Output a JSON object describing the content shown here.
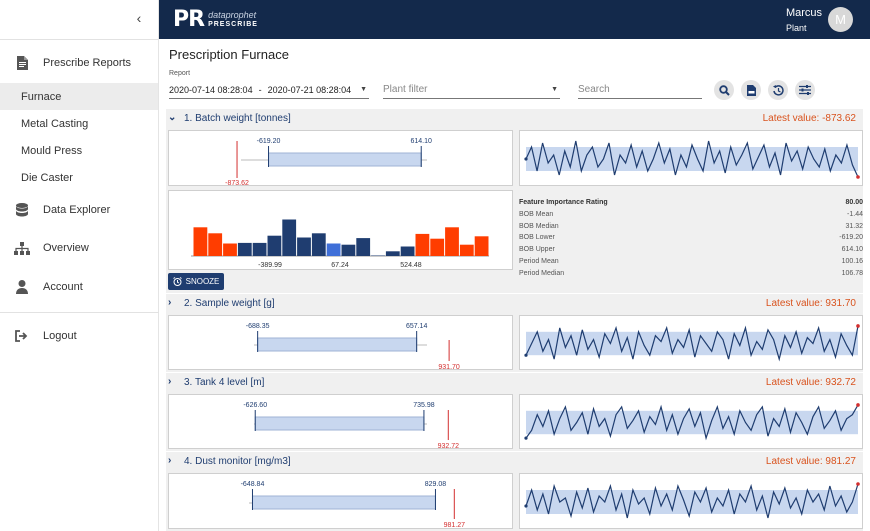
{
  "sidebar": {
    "items": [
      {
        "label": "Prescribe Reports",
        "icon": "document-icon"
      },
      {
        "label": "Data Explorer",
        "icon": "database-icon"
      },
      {
        "label": "Overview",
        "icon": "sitemap-icon"
      },
      {
        "label": "Account",
        "icon": "user-icon"
      },
      {
        "label": "Logout",
        "icon": "logout-icon"
      }
    ],
    "sub_items": [
      {
        "label": "Furnace",
        "active": true
      },
      {
        "label": "Metal Casting"
      },
      {
        "label": "Mould Press"
      },
      {
        "label": "Die Caster"
      }
    ]
  },
  "header": {
    "logo_mark": "PR",
    "logo_line1": "dataprophet",
    "logo_line2": "PRESCRIBE",
    "user_name": "Marcus",
    "user_role": "Plant",
    "avatar_letter": "M"
  },
  "toolbar": {
    "page_title": "Prescription Furnace",
    "report_label": "Report",
    "date_from": "2020-07-14  08:28:04",
    "date_sep": "-",
    "date_to": "2020-07-21  08:28:04",
    "plant_filter_placeholder": "Plant filter",
    "search_placeholder": "Search",
    "buttons": [
      "search-icon",
      "csv-icon",
      "history-icon",
      "sliders-icon"
    ]
  },
  "colors": {
    "navy": "#13294b",
    "accent": "#1f3d70",
    "orange": "#d9531e",
    "red_bar": "#ff3d00",
    "band": "#c8d7ef"
  },
  "features": [
    {
      "title": "1. Batch weight [tonnes]",
      "latest": "Latest value: -873.62",
      "expanded": true,
      "bob_lower_label": "-619.20",
      "bob_upper_label": "614.10",
      "latest_label": "-873.62",
      "range": [
        -1100,
        1000
      ],
      "bob_lower": -619.2,
      "bob_upper": 614.1,
      "latest_value": -873.62,
      "hist_ticks": [
        "-389.99",
        "67.24",
        "524.48"
      ],
      "hist_values": [
        0.47,
        0.37,
        0.2,
        0.21,
        0.21,
        0.33,
        0.6,
        0.3,
        0.37,
        0.2,
        0.18,
        0.29,
        0.0,
        0.07,
        0.15,
        0.36,
        0.28,
        0.47,
        0.18,
        0.32
      ],
      "hist_colors": [
        "red",
        "red",
        "red",
        "navy",
        "navy",
        "navy",
        "navy",
        "navy",
        "navy",
        "blue",
        "navy",
        "navy",
        "navy",
        "navy",
        "navy",
        "red",
        "red",
        "red",
        "red",
        "red"
      ],
      "series": [
        0.5,
        0.8,
        0.2,
        0.9,
        0.4,
        0.6,
        0.1,
        0.7,
        0.3,
        0.95,
        0.2,
        0.6,
        0.8,
        0.3,
        0.5,
        0.9,
        0.1,
        0.6,
        0.4,
        0.85,
        0.3,
        0.7,
        0.2,
        0.5,
        0.9,
        0.4,
        0.75,
        0.1,
        0.6,
        0.3,
        0.85,
        0.5,
        0.2,
        0.95,
        0.4,
        0.7,
        0.15,
        0.8,
        0.35,
        0.6,
        0.9,
        0.25,
        0.55,
        0.85,
        0.3,
        0.65,
        0.1,
        0.9,
        0.45,
        0.7,
        0.25,
        0.8,
        0.5,
        0.3,
        0.75,
        0.2,
        0.6,
        0.4,
        0.85,
        0.35,
        0.05
      ],
      "stats": [
        {
          "k": "Feature Importance Rating",
          "v": "80.00",
          "bold": true
        },
        {
          "k": "BOB Mean",
          "v": "-1.44"
        },
        {
          "k": "BOB Median",
          "v": "31.32"
        },
        {
          "k": "BOB Lower",
          "v": "-619.20"
        },
        {
          "k": "BOB Upper",
          "v": "614.10"
        },
        {
          "k": "Period Mean",
          "v": "100.16"
        },
        {
          "k": "Period Median",
          "v": "106.78"
        }
      ],
      "snooze": "SNOOZE"
    },
    {
      "title": "2. Sample weight [g]",
      "latest": "Latest value: 931.70",
      "bob_lower_label": "-688.35",
      "bob_upper_label": "657.14",
      "latest_label": "931.70",
      "range": [
        -1100,
        1100
      ],
      "bob_lower": -688.35,
      "bob_upper": 657.14,
      "latest_value": 931.7,
      "series": [
        0.2,
        0.5,
        0.8,
        0.3,
        0.6,
        0.1,
        0.9,
        0.4,
        0.7,
        0.2,
        0.85,
        0.35,
        0.6,
        0.15,
        0.75,
        0.5,
        0.9,
        0.3,
        0.65,
        0.1,
        0.8,
        0.45,
        0.2,
        0.7,
        0.55,
        0.9,
        0.25,
        0.6,
        0.4,
        0.85,
        0.15,
        0.7,
        0.5,
        0.3,
        0.8,
        0.6,
        0.1,
        0.75,
        0.45,
        0.9,
        0.2,
        0.55,
        0.35,
        0.85,
        0.6,
        0.1,
        0.7,
        0.4,
        0.8,
        0.25,
        0.65,
        0.5,
        0.9,
        0.3,
        0.6,
        0.15,
        0.75,
        0.45,
        0.2,
        0.95
      ]
    },
    {
      "title": "3. Tank 4 level [m]",
      "latest": "Latest value: 932.72",
      "bob_lower_label": "-626.60",
      "bob_upper_label": "735.98",
      "latest_label": "932.72",
      "range": [
        -1000,
        1100
      ],
      "bob_lower": -626.6,
      "bob_upper": 735.98,
      "latest_value": 932.72,
      "series": [
        0.1,
        0.3,
        0.7,
        0.4,
        0.8,
        0.2,
        0.6,
        0.9,
        0.3,
        0.5,
        0.75,
        0.2,
        0.85,
        0.4,
        0.6,
        0.15,
        0.7,
        0.9,
        0.35,
        0.55,
        0.8,
        0.25,
        0.65,
        0.45,
        0.9,
        0.3,
        0.7,
        0.2,
        0.6,
        0.85,
        0.4,
        0.75,
        0.1,
        0.55,
        0.9,
        0.35,
        0.65,
        0.2,
        0.8,
        0.5,
        0.3,
        0.7,
        0.9,
        0.15,
        0.6,
        0.4,
        0.85,
        0.25,
        0.75,
        0.5,
        0.2,
        0.65,
        0.9,
        0.35,
        0.55,
        0.8,
        0.3,
        0.6,
        0.7,
        0.95
      ]
    },
    {
      "title": "4. Dust monitor [mg/m3]",
      "latest": "Latest value: 981.27",
      "bob_lower_label": "-648.84",
      "bob_upper_label": "829.08",
      "latest_label": "981.27",
      "range": [
        -1000,
        1100
      ],
      "bob_lower": -648.84,
      "bob_upper": 829.08,
      "latest_value": 981.27,
      "series": [
        0.4,
        0.8,
        0.3,
        0.7,
        0.2,
        0.9,
        0.5,
        0.6,
        0.15,
        0.75,
        0.35,
        0.85,
        0.25,
        0.65,
        0.5,
        0.9,
        0.3,
        0.7,
        0.1,
        0.8,
        0.45,
        0.6,
        0.2,
        0.85,
        0.4,
        0.7,
        0.3,
        0.9,
        0.55,
        0.15,
        0.75,
        0.5,
        0.85,
        0.25,
        0.6,
        0.4,
        0.8,
        0.2,
        0.7,
        0.5,
        0.9,
        0.3,
        0.65,
        0.1,
        0.75,
        0.45,
        0.85,
        0.35,
        0.6,
        0.2,
        0.8,
        0.5,
        0.7,
        0.3,
        0.9,
        0.4,
        0.65,
        0.25,
        0.5,
        0.95
      ]
    }
  ]
}
